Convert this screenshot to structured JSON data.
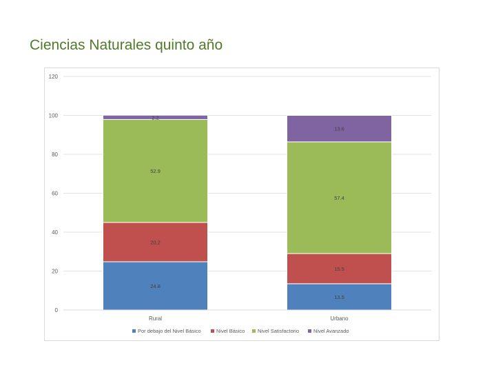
{
  "page": {
    "title": "Ciencias Naturales quinto año"
  },
  "chart_data": {
    "type": "bar",
    "stacked": true,
    "title": "",
    "xlabel": "",
    "ylabel": "",
    "categories": [
      "Rural",
      "Urbano"
    ],
    "ylim": [
      0,
      120
    ],
    "yticks": [
      0,
      20,
      40,
      60,
      80,
      100,
      120
    ],
    "grid": true,
    "legend_position": "bottom",
    "series": [
      {
        "name": "Por debajo del Nivel Básico",
        "values": [
          24.8,
          13.5
        ],
        "labels": [
          "24.8",
          "13.5"
        ],
        "color": "#4f81bd"
      },
      {
        "name": "Nivel Básico",
        "values": [
          20.2,
          15.5
        ],
        "labels": [
          "20.2",
          "15.5"
        ],
        "color": "#c0504d"
      },
      {
        "name": "Nivel Satisfactorio",
        "values": [
          52.9,
          57.4
        ],
        "labels": [
          "52.9",
          "57.4"
        ],
        "color": "#9bbb59"
      },
      {
        "name": "Nivel Avanzado",
        "values": [
          2.2,
          13.6
        ],
        "labels": [
          "2.2",
          "13.6"
        ],
        "color": "#8064a2"
      }
    ]
  }
}
